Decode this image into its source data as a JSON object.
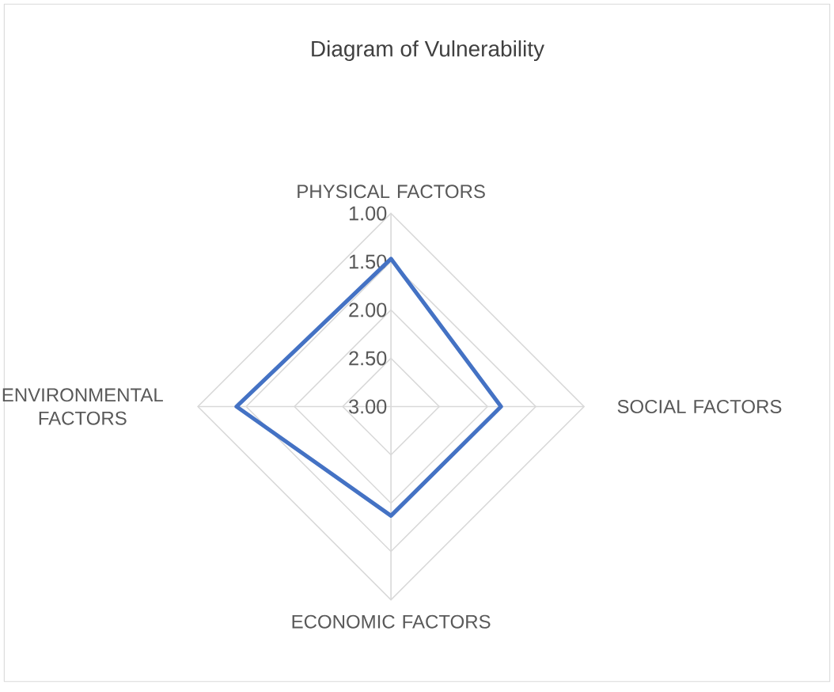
{
  "chart_data": {
    "type": "radar",
    "title": "Diagram of Vulnerability",
    "categories": [
      "PHYSICAL FACTORS",
      "SOCIAL FACTORS",
      "ECONOMIC FACTORS",
      "ENVIRONMENTAL FACTORS"
    ],
    "series": [
      {
        "color": "#4472c4",
        "values": [
          1.47,
          1.86,
          1.87,
          1.4
        ]
      }
    ],
    "ylim": [
      3,
      1
    ],
    "yticks": [
      {
        "value": 1,
        "label": "1.00"
      },
      {
        "value": 1.5,
        "label": "1.50"
      },
      {
        "value": 2,
        "label": "2.00"
      },
      {
        "value": 2.5,
        "label": "2.50"
      },
      {
        "value": 3,
        "label": "3.00"
      }
    ],
    "grid": true
  }
}
